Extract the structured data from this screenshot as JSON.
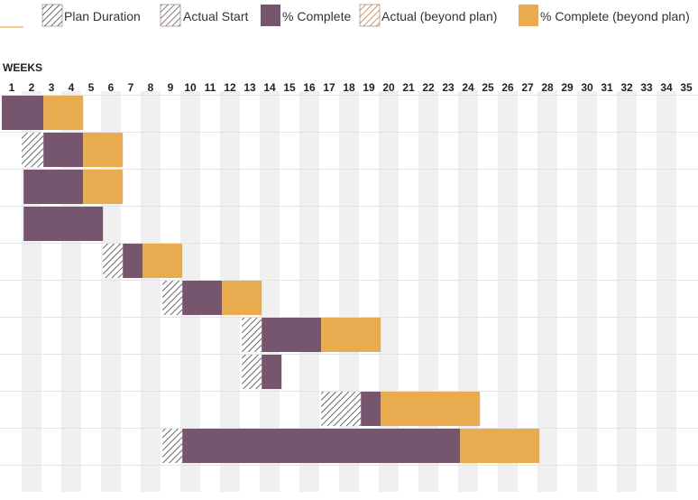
{
  "legend": {
    "items": [
      {
        "key": "plan",
        "label": "Plan Duration",
        "style": "hatch-black"
      },
      {
        "key": "actual_start",
        "label": "Actual Start",
        "style": "hatch-purple"
      },
      {
        "key": "complete",
        "label": "% Complete",
        "style": "solid-purple"
      },
      {
        "key": "actual_beyond",
        "label": "Actual (beyond plan)",
        "style": "hatch-orange"
      },
      {
        "key": "complete_beyond",
        "label": "% Complete (beyond plan)",
        "style": "solid-orange"
      }
    ]
  },
  "colors": {
    "purple": "#76566f",
    "orange": "#e8ab4f",
    "hatch": "#444444",
    "stripe": "#f0f0f0"
  },
  "chart_data": {
    "type": "gantt",
    "xlabel": "WEEKS",
    "weeks": [
      "1",
      "2",
      "3",
      "4",
      "5",
      "6",
      "7",
      "8",
      "9",
      "10",
      "11",
      "12",
      "13",
      "14",
      "15",
      "16",
      "17",
      "18",
      "19",
      "20",
      "21",
      "22",
      "23",
      "24",
      "25",
      "26",
      "27",
      "28",
      "29",
      "30",
      "31",
      "32",
      "33",
      "34",
      "35"
    ],
    "rows": [
      {
        "plan_start": 1,
        "plan_end": 3.1,
        "complete_start": 1,
        "complete_end": 3.1,
        "beyond_start": 3.1,
        "beyond_end": 5.1
      },
      {
        "plan_start": 2,
        "plan_end": 3.1,
        "complete_start": 3.1,
        "complete_end": 5.1,
        "beyond_start": 5.1,
        "beyond_end": 7.1
      },
      {
        "plan_start": 2.1,
        "plan_end": 2.1,
        "complete_start": 2.1,
        "complete_end": 5.1,
        "beyond_start": 5.1,
        "beyond_end": 7.1
      },
      {
        "plan_start": 2.1,
        "plan_end": 2.1,
        "complete_start": 2.1,
        "complete_end": 6.1,
        "beyond_start": 6.1,
        "beyond_end": 6.1
      },
      {
        "plan_start": 6.1,
        "plan_end": 7.1,
        "complete_start": 7.1,
        "complete_end": 8.1,
        "beyond_start": 8.1,
        "beyond_end": 10.1
      },
      {
        "plan_start": 9.1,
        "plan_end": 10.1,
        "complete_start": 10.1,
        "complete_end": 12.1,
        "beyond_start": 12.1,
        "beyond_end": 14.1
      },
      {
        "plan_start": 13.1,
        "plan_end": 14.1,
        "complete_start": 14.1,
        "complete_end": 17.1,
        "beyond_start": 17.1,
        "beyond_end": 20.1
      },
      {
        "plan_start": 13.1,
        "plan_end": 14.1,
        "complete_start": 14.1,
        "complete_end": 15.1,
        "beyond_start": 15.1,
        "beyond_end": 15.1
      },
      {
        "plan_start": 17.1,
        "plan_end": 19.1,
        "complete_start": 19.1,
        "complete_end": 20.1,
        "beyond_start": 20.1,
        "beyond_end": 25.1
      },
      {
        "plan_start": 9.1,
        "plan_end": 10.1,
        "complete_start": 10.1,
        "complete_end": 24.1,
        "beyond_start": 24.1,
        "beyond_end": 28.1
      }
    ]
  }
}
